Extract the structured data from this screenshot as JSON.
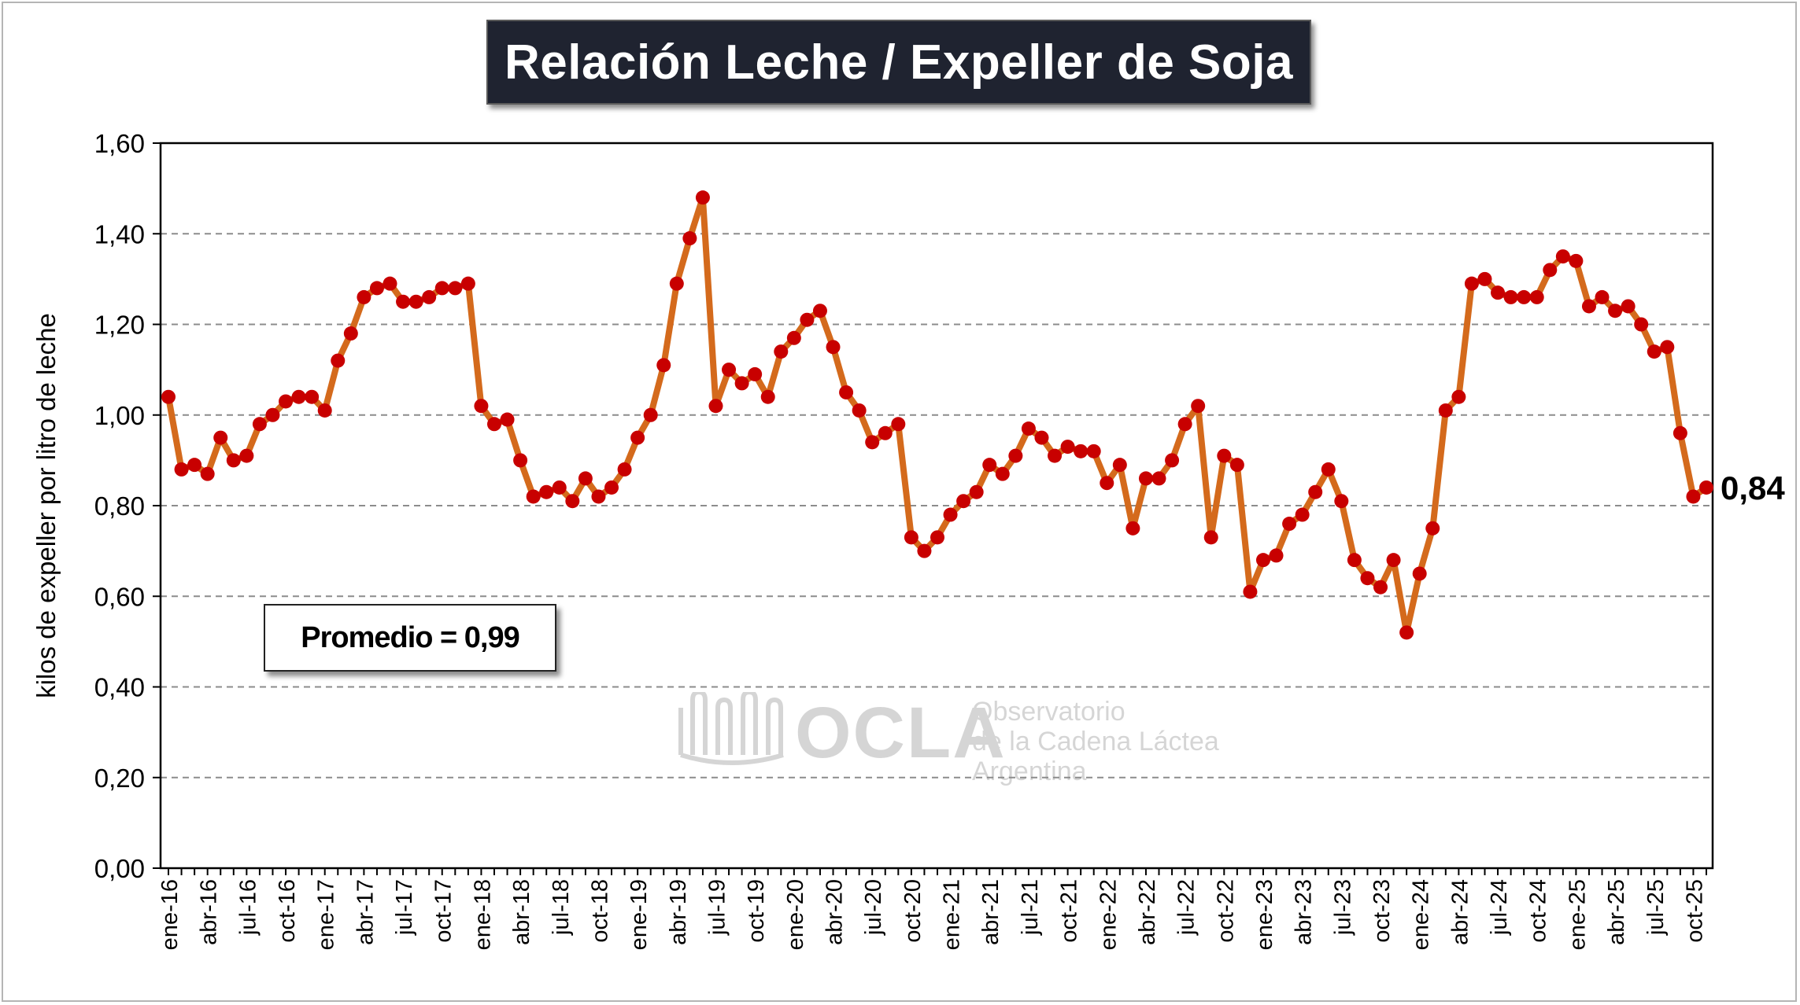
{
  "colors": {
    "line": "#d46a1c",
    "marker": "#c80000",
    "title_bg": "#1f2330",
    "grid": "#8c8c8c"
  },
  "title": "Relación Leche / Expeller de Soja",
  "average_label": "Promedio = 0,99",
  "last_value_label": "0,84",
  "watermark": {
    "brand": "OCLA",
    "line1": "Observatorio",
    "line2": "de la Cadena Láctea",
    "line3": "Argentina"
  },
  "chart_data": {
    "type": "line",
    "title": "Relación Leche / Expeller de Soja",
    "xlabel": "",
    "ylabel": "kilos de expeller por litro de leche",
    "ylim": [
      0,
      1.6
    ],
    "yticks": [
      "0,00",
      "0,20",
      "0,40",
      "0,60",
      "0,80",
      "1,00",
      "1,20",
      "1,40",
      "1,60"
    ],
    "grid": true,
    "xtick_labels": [
      "ene-16",
      "abr-16",
      "jul-16",
      "oct-16",
      "ene-17",
      "abr-17",
      "jul-17",
      "oct-17",
      "ene-18",
      "abr-18",
      "jul-18",
      "oct-18",
      "ene-19",
      "abr-19",
      "jul-19",
      "oct-19",
      "ene-20",
      "abr-20",
      "jul-20",
      "oct-20",
      "ene-21",
      "abr-21",
      "jul-21",
      "oct-21",
      "ene-22",
      "abr-22",
      "jul-22",
      "oct-22",
      "ene-23",
      "abr-23",
      "jul-23",
      "oct-23",
      "ene-24",
      "abr-24",
      "jul-24",
      "oct-24",
      "ene-25",
      "abr-25",
      "jul-25",
      "oct-25"
    ],
    "start_month": "ene-16",
    "series": [
      {
        "name": "Relación Leche / Expeller de Soja",
        "values": [
          1.04,
          0.88,
          0.89,
          0.87,
          0.95,
          0.9,
          0.91,
          0.98,
          1.0,
          1.03,
          1.04,
          1.04,
          1.01,
          1.12,
          1.18,
          1.26,
          1.28,
          1.29,
          1.25,
          1.25,
          1.26,
          1.28,
          1.28,
          1.29,
          1.02,
          0.98,
          0.99,
          0.9,
          0.82,
          0.83,
          0.84,
          0.81,
          0.86,
          0.82,
          0.84,
          0.88,
          0.95,
          1.0,
          1.11,
          1.29,
          1.39,
          1.48,
          1.02,
          1.1,
          1.07,
          1.09,
          1.04,
          1.14,
          1.17,
          1.21,
          1.23,
          1.15,
          1.05,
          1.01,
          0.94,
          0.96,
          0.98,
          0.73,
          0.7,
          0.73,
          0.78,
          0.81,
          0.83,
          0.89,
          0.87,
          0.91,
          0.97,
          0.95,
          0.91,
          0.93,
          0.92,
          0.92,
          0.85,
          0.89,
          0.75,
          0.86,
          0.86,
          0.9,
          0.98,
          1.02,
          0.73,
          0.91,
          0.89,
          0.61,
          0.68,
          0.69,
          0.76,
          0.78,
          0.83,
          0.88,
          0.81,
          0.68,
          0.64,
          0.62,
          0.68,
          0.52,
          0.65,
          0.75,
          1.01,
          1.04,
          1.29,
          1.3,
          1.27,
          1.26,
          1.26,
          1.26,
          1.32,
          1.35,
          1.34,
          1.24,
          1.26,
          1.23,
          1.24,
          1.2,
          1.14,
          1.15,
          0.96,
          0.82,
          0.84
        ]
      }
    ]
  }
}
